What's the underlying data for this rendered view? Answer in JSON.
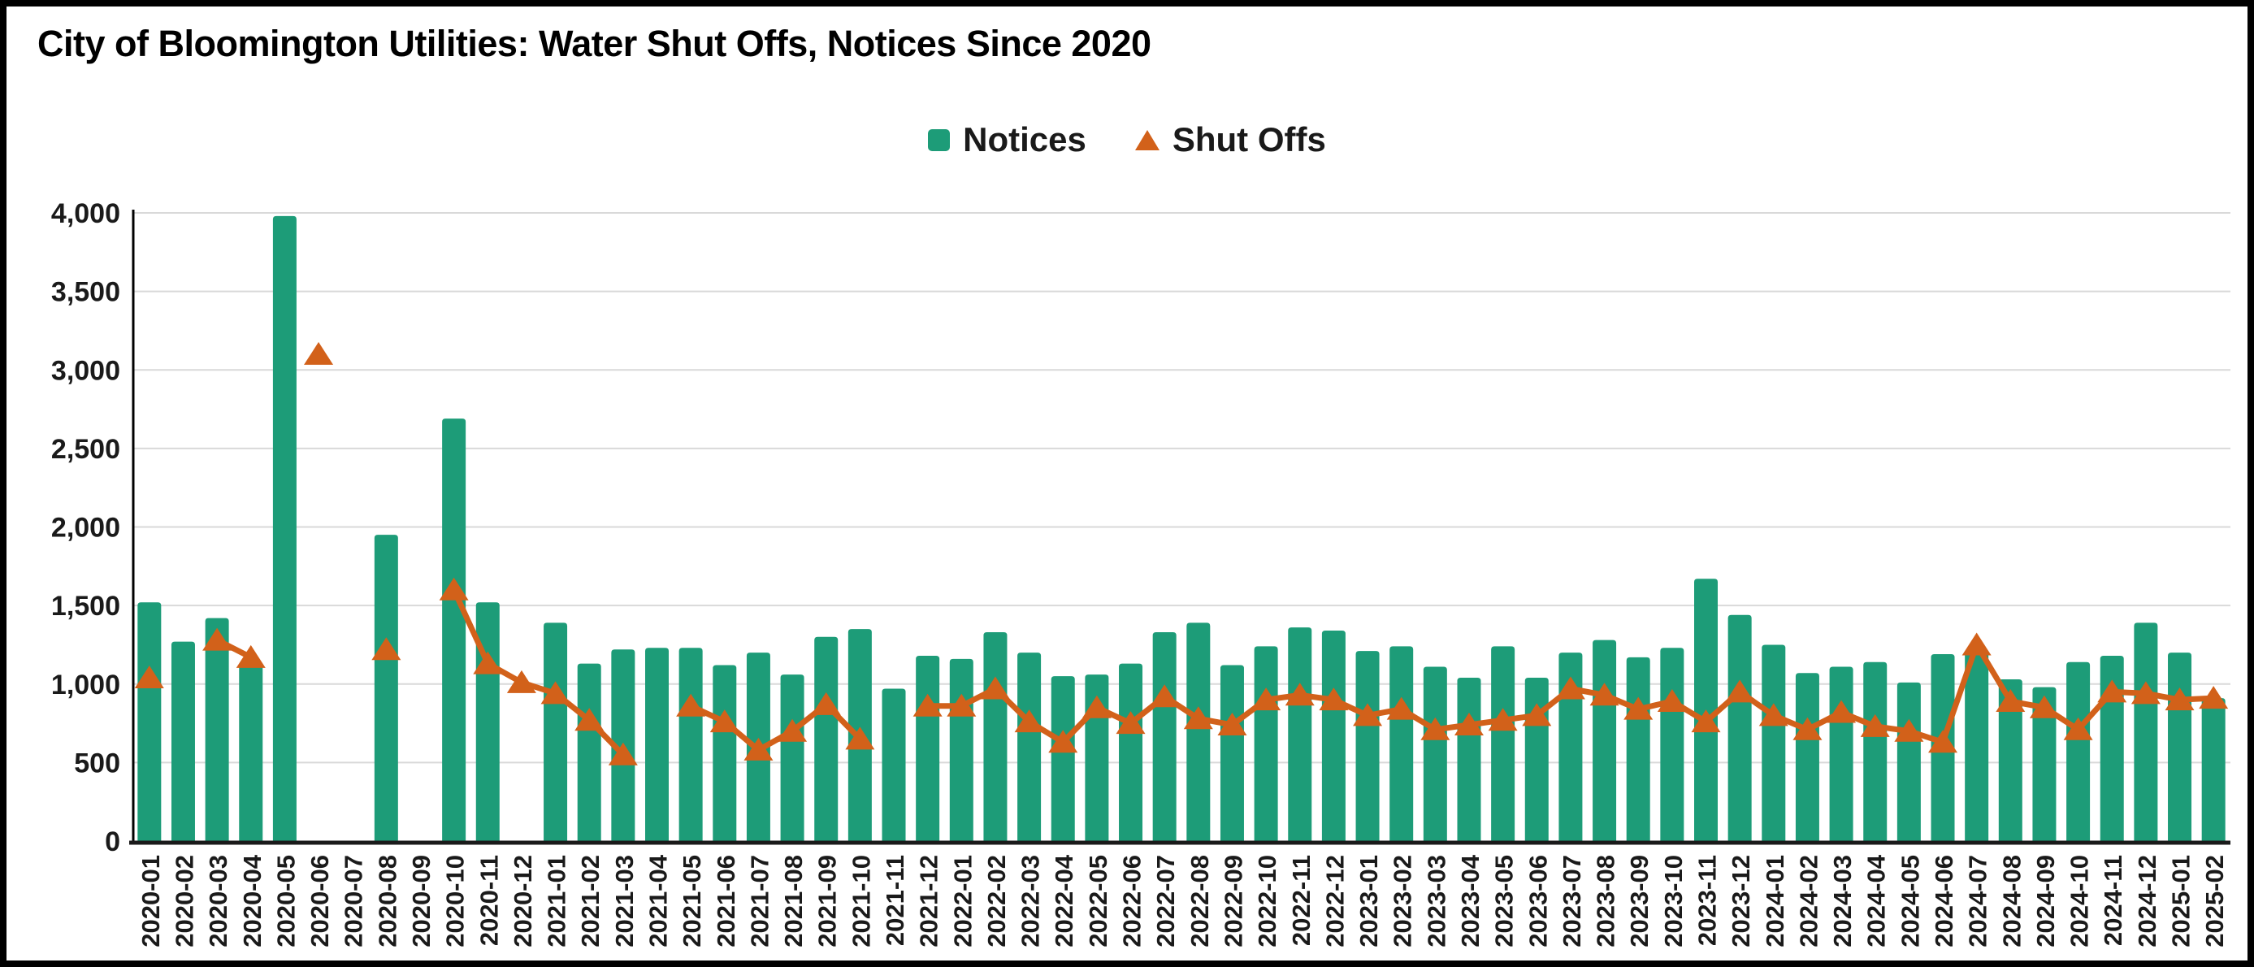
{
  "title": "City of Bloomington Utilities: Water Shut Offs, Notices Since 2020",
  "colors": {
    "notices_bar": "#1d9c78",
    "shutoffs_line": "#d2611a",
    "gridline": "#d9d9d9",
    "axis": "#1a1a1a",
    "text": "#1a1a1a"
  },
  "y_axis": {
    "min": 0,
    "max": 4000,
    "tick_step": 500,
    "tick_labels": [
      "0",
      "500",
      "1,000",
      "1,500",
      "2,000",
      "2,500",
      "3,000",
      "3,500",
      "4,000"
    ]
  },
  "chart_data": {
    "type": "bar",
    "title": "City of Bloomington Utilities: Water Shut Offs, Notices Since 2020",
    "xlabel": "",
    "ylabel": "",
    "ylim": [
      0,
      4000
    ],
    "grid": "horizontal",
    "legend_position": "top-center",
    "categories": [
      "2020-01",
      "2020-02",
      "2020-03",
      "2020-04",
      "2020-05",
      "2020-06",
      "2020-07",
      "2020-08",
      "2020-09",
      "2020-10",
      "2020-11",
      "2020-12",
      "2021-01",
      "2021-02",
      "2021-03",
      "2021-04",
      "2021-05",
      "2021-06",
      "2021-07",
      "2021-08",
      "2021-09",
      "2021-10",
      "2021-11",
      "2021-12",
      "2022-01",
      "2022-02",
      "2022-03",
      "2022-04",
      "2022-05",
      "2022-06",
      "2022-07",
      "2022-08",
      "2022-09",
      "2022-10",
      "2022-11",
      "2022-12",
      "2023-01",
      "2023-02",
      "2023-03",
      "2023-04",
      "2023-05",
      "2023-06",
      "2023-07",
      "2023-08",
      "2023-09",
      "2023-10",
      "2023-11",
      "2023-12",
      "2024-01",
      "2024-02",
      "2024-03",
      "2024-04",
      "2024-05",
      "2024-06",
      "2024-07",
      "2024-08",
      "2024-09",
      "2024-10",
      "2024-11",
      "2024-12",
      "2025-01",
      "2025-02"
    ],
    "series": [
      {
        "name": "Notices",
        "type": "bar",
        "color": "#1d9c78",
        "values": [
          1520,
          1270,
          1420,
          1140,
          3980,
          null,
          null,
          1950,
          null,
          2690,
          1520,
          null,
          1390,
          1130,
          1220,
          1230,
          1230,
          1120,
          1200,
          1060,
          1300,
          1350,
          970,
          1180,
          1160,
          1330,
          1200,
          1050,
          1060,
          1130,
          1330,
          1390,
          1120,
          1240,
          1360,
          1340,
          1210,
          1240,
          1110,
          1040,
          1240,
          1040,
          1200,
          1280,
          1170,
          1230,
          1670,
          1440,
          1250,
          1070,
          1110,
          1140,
          1010,
          1190,
          1220,
          1030,
          980,
          1140,
          1180,
          1390,
          1200,
          910
        ]
      },
      {
        "name": "Shut Offs",
        "type": "line",
        "marker": "triangle",
        "color": "#d2611a",
        "values": [
          1040,
          null,
          1280,
          1170,
          null,
          3100,
          null,
          1220,
          null,
          1600,
          1130,
          1010,
          940,
          770,
          550,
          null,
          860,
          760,
          580,
          700,
          870,
          650,
          null,
          860,
          860,
          970,
          760,
          630,
          850,
          750,
          920,
          780,
          740,
          900,
          930,
          900,
          800,
          840,
          710,
          740,
          770,
          800,
          970,
          930,
          840,
          890,
          760,
          950,
          800,
          710,
          820,
          730,
          700,
          630,
          1250,
          890,
          850,
          710,
          950,
          940,
          900,
          910
        ]
      }
    ]
  }
}
